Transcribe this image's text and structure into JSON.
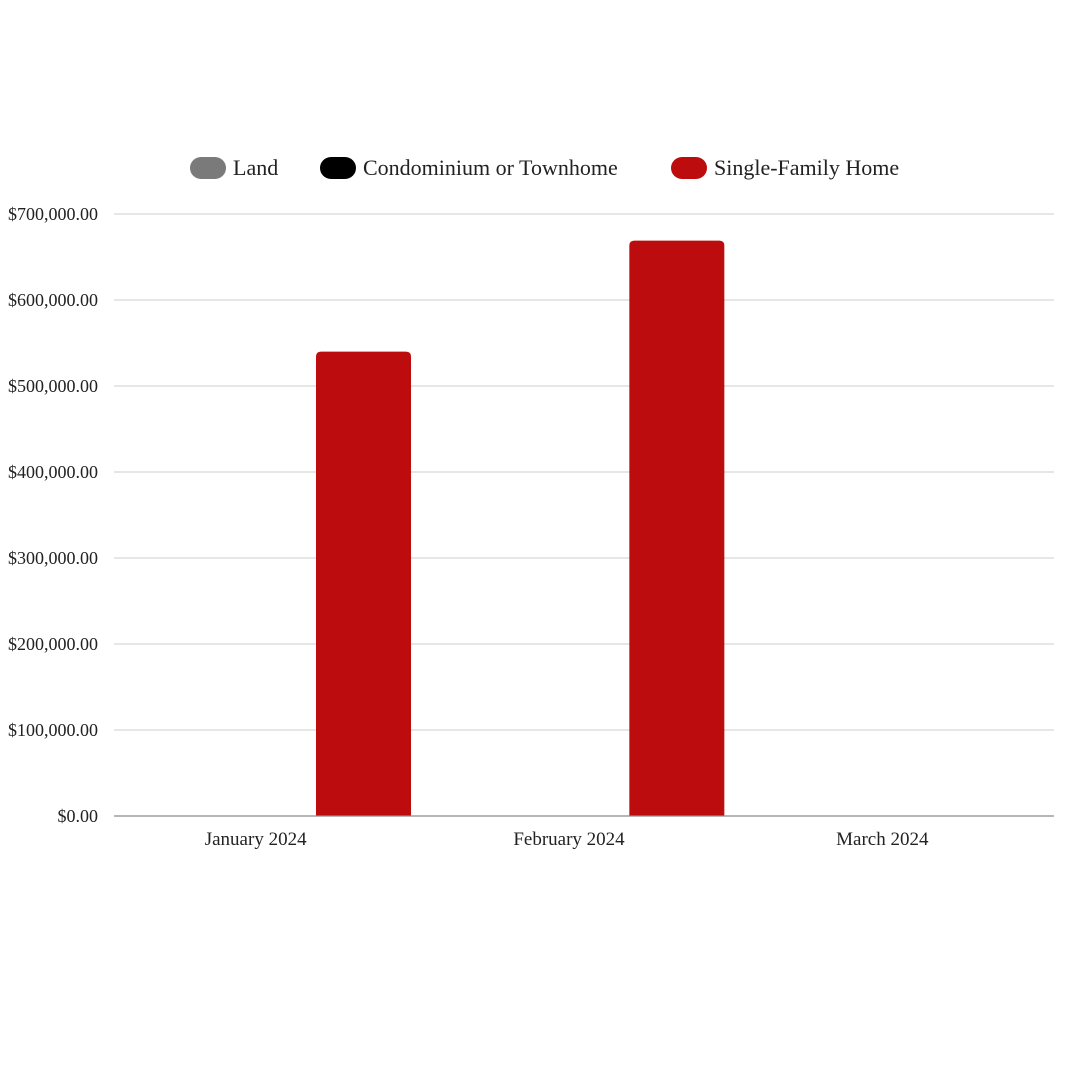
{
  "chart_data": {
    "type": "bar",
    "title": "",
    "xlabel": "",
    "ylabel": "",
    "categories": [
      "January 2024",
      "February 2024",
      "March 2024"
    ],
    "series": [
      {
        "name": "Land",
        "color": "#7a7a7a",
        "values": [
          0,
          0,
          0
        ]
      },
      {
        "name": "Condominium or Townhome",
        "color": "#000000",
        "values": [
          0,
          0,
          0
        ]
      },
      {
        "name": "Single-Family Home",
        "color": "#bd0c0d",
        "values": [
          540000,
          669000,
          0
        ]
      }
    ],
    "ylim": [
      0,
      700000
    ],
    "yticks": [
      0,
      100000,
      200000,
      300000,
      400000,
      500000,
      600000,
      700000
    ],
    "ytick_labels": [
      "$0.00",
      "$100,000.00",
      "$200,000.00",
      "$300,000.00",
      "$400,000.00",
      "$500,000.00",
      "$600,000.00",
      "$700,000.00"
    ],
    "grid": true,
    "legend_position": "top-center"
  }
}
